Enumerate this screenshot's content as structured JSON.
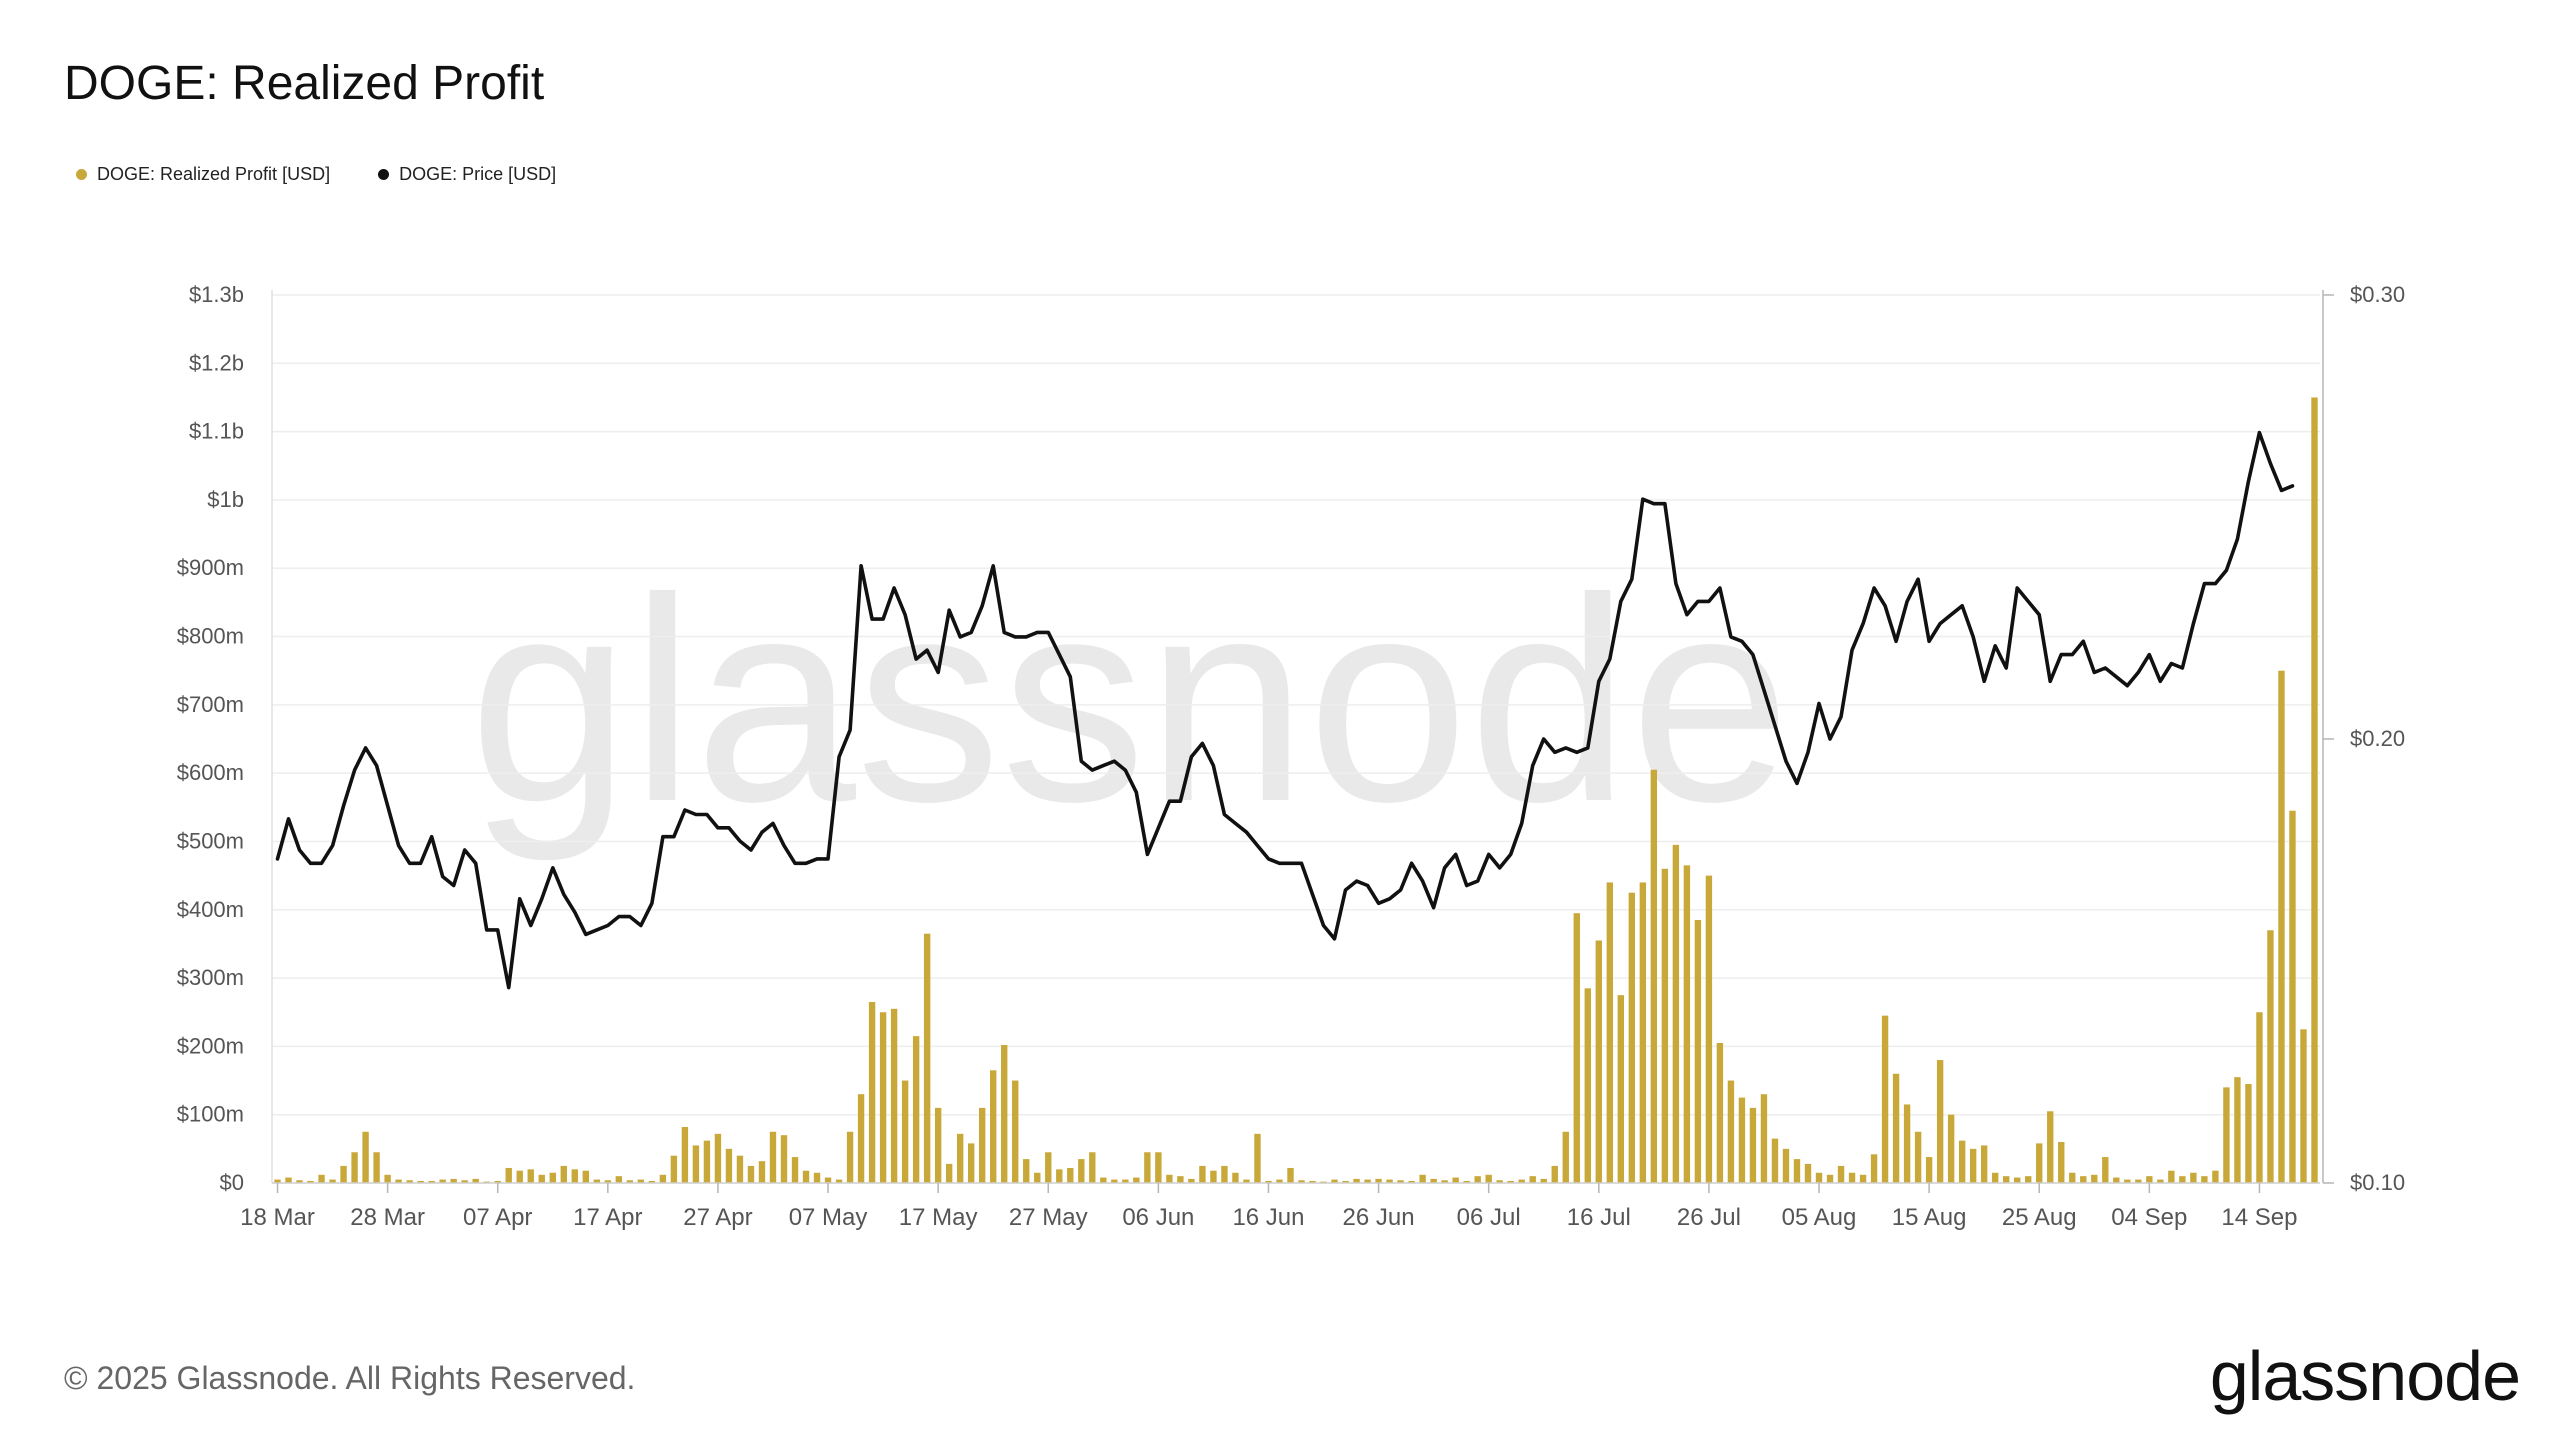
{
  "header": {
    "title": "DOGE: Realized Profit"
  },
  "legend": [
    {
      "label": "DOGE: Realized Profit [USD]",
      "color": "#c9a83a",
      "icon": "dot"
    },
    {
      "label": "DOGE: Price [USD]",
      "color": "#111111",
      "icon": "dot"
    }
  ],
  "watermark": "glassnode",
  "footer": {
    "copyright": "© 2025 Glassnode. All Rights Reserved.",
    "logo": "glassnode"
  },
  "chart_data": {
    "type": "bar",
    "title": "DOGE: Realized Profit",
    "x_tick_labels": [
      "18 Mar",
      "28 Mar",
      "07 Apr",
      "17 Apr",
      "27 Apr",
      "07 May",
      "17 May",
      "27 May",
      "06 Jun",
      "16 Jun",
      "26 Jun",
      "06 Jul",
      "16 Jul",
      "26 Jul",
      "05 Aug",
      "15 Aug",
      "25 Aug",
      "04 Sep",
      "14 Sep"
    ],
    "y_left": {
      "ticks": [
        "$0",
        "$100m",
        "$200m",
        "$300m",
        "$400m",
        "$500m",
        "$600m",
        "$700m",
        "$800m",
        "$900m",
        "$1b",
        "$1.1b",
        "$1.2b",
        "$1.3b"
      ],
      "range": [
        0,
        1300
      ],
      "unit": "USD millions"
    },
    "y_right": {
      "ticks": [
        "$0.10",
        "$0.20",
        "$0.30"
      ],
      "range": [
        0.1,
        0.3
      ],
      "unit": "USD"
    },
    "grid": true,
    "legend_position": "top-left",
    "start_date": "2025-03-18",
    "series": [
      {
        "name": "DOGE: Realized Profit [USD]",
        "type": "bar",
        "axis": "left",
        "color": "#c9a83a",
        "values": [
          5,
          8,
          4,
          3,
          12,
          5,
          25,
          45,
          75,
          45,
          12,
          5,
          4,
          3,
          3,
          5,
          6,
          4,
          6,
          2,
          3,
          22,
          18,
          20,
          12,
          15,
          25,
          20,
          18,
          5,
          4,
          10,
          4,
          5,
          3,
          12,
          40,
          82,
          55,
          62,
          72,
          50,
          40,
          25,
          32,
          75,
          70,
          38,
          18,
          15,
          8,
          5,
          75,
          130,
          265,
          250,
          255,
          150,
          215,
          365,
          110,
          28,
          72,
          58,
          110,
          165,
          202,
          150,
          35,
          15,
          45,
          20,
          22,
          35,
          45,
          8,
          5,
          5,
          8,
          45,
          45,
          12,
          10,
          6,
          25,
          18,
          25,
          15,
          5,
          72,
          3,
          5,
          22,
          4,
          3,
          2,
          5,
          3,
          6,
          5,
          6,
          5,
          4,
          3,
          12,
          6,
          4,
          8,
          3,
          10,
          12,
          4,
          3,
          5,
          10,
          6,
          25,
          75,
          395,
          285,
          355,
          440,
          275,
          425,
          440,
          605,
          460,
          495,
          465,
          385,
          450,
          205,
          150,
          125,
          110,
          130,
          65,
          50,
          35,
          28,
          15,
          12,
          25,
          15,
          12,
          42,
          245,
          160,
          115,
          75,
          38,
          180,
          100,
          62,
          50,
          55,
          15,
          10,
          8,
          10,
          58,
          105,
          60,
          15,
          10,
          12,
          38,
          8,
          5,
          5,
          10,
          5,
          18,
          10,
          15,
          10,
          18,
          140,
          155,
          145,
          250,
          370,
          750,
          545,
          225,
          1150
        ]
      },
      {
        "name": "DOGE: Price [USD]",
        "type": "line",
        "axis": "right",
        "color": "#111111",
        "values": [
          0.173,
          0.182,
          0.175,
          0.172,
          0.172,
          0.176,
          0.185,
          0.193,
          0.198,
          0.194,
          0.185,
          0.176,
          0.172,
          0.172,
          0.178,
          0.169,
          0.167,
          0.175,
          0.172,
          0.157,
          0.157,
          0.144,
          0.164,
          0.158,
          0.164,
          0.171,
          0.165,
          0.161,
          0.156,
          0.157,
          0.158,
          0.16,
          0.16,
          0.158,
          0.163,
          0.178,
          0.178,
          0.184,
          0.183,
          0.183,
          0.18,
          0.18,
          0.177,
          0.175,
          0.179,
          0.181,
          0.176,
          0.172,
          0.172,
          0.173,
          0.173,
          0.196,
          0.202,
          0.239,
          0.227,
          0.227,
          0.234,
          0.228,
          0.218,
          0.22,
          0.215,
          0.229,
          0.223,
          0.224,
          0.23,
          0.239,
          0.224,
          0.223,
          0.223,
          0.224,
          0.224,
          0.219,
          0.214,
          0.195,
          0.193,
          0.194,
          0.195,
          0.193,
          0.188,
          0.174,
          0.18,
          0.186,
          0.186,
          0.196,
          0.199,
          0.194,
          0.183,
          0.181,
          0.179,
          0.176,
          0.173,
          0.172,
          0.172,
          0.172,
          0.165,
          0.158,
          0.155,
          0.166,
          0.168,
          0.167,
          0.163,
          0.164,
          0.166,
          0.172,
          0.168,
          0.162,
          0.171,
          0.174,
          0.167,
          0.168,
          0.174,
          0.171,
          0.174,
          0.181,
          0.194,
          0.2,
          0.197,
          0.198,
          0.197,
          0.198,
          0.213,
          0.218,
          0.231,
          0.236,
          0.254,
          0.253,
          0.253,
          0.235,
          0.228,
          0.231,
          0.231,
          0.234,
          0.223,
          0.222,
          0.219,
          0.211,
          0.203,
          0.195,
          0.19,
          0.197,
          0.208,
          0.2,
          0.205,
          0.22,
          0.226,
          0.234,
          0.23,
          0.222,
          0.231,
          0.236,
          0.222,
          0.226,
          0.228,
          0.23,
          0.223,
          0.213,
          0.221,
          0.216,
          0.234,
          0.231,
          0.228,
          0.213,
          0.219,
          0.219,
          0.222,
          0.215,
          0.216,
          0.214,
          0.212,
          0.215,
          0.219,
          0.213,
          0.217,
          0.216,
          0.226,
          0.235,
          0.235,
          0.238,
          0.245,
          0.258,
          0.269,
          0.262,
          0.256,
          0.257
        ]
      }
    ]
  }
}
